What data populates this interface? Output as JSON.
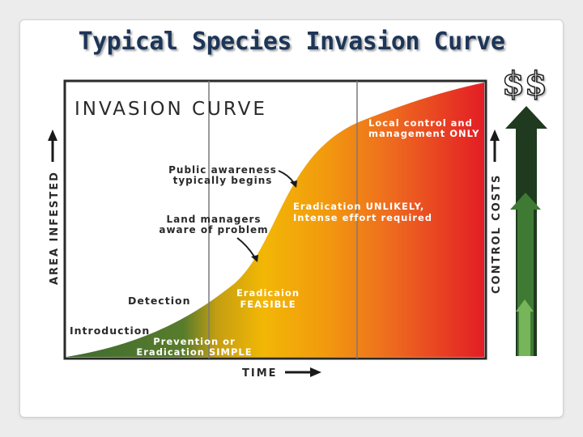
{
  "slide": {
    "title": "Typical Species Invasion Curve",
    "cost_symbol": "$$"
  },
  "diagram": {
    "heading": "INVASION CURVE",
    "y_axis_label": "AREA INFESTED",
    "x_axis_label": "TIME",
    "right_axis_label": "CONTROL COSTS",
    "labels": {
      "introduction": "Introduction",
      "detection": "Detection",
      "prevention_line1": "Prevention or",
      "prevention_line2": "Eradication SIMPLE",
      "eradication_line1": "Eradicaion",
      "eradication_line2": "FEASIBLE",
      "land_line1": "Land managers",
      "land_line2": "aware of problem",
      "public_line1": "Public awareness",
      "public_line2": "typically begins",
      "unlikely_line1": "Eradication UNLIKELY,",
      "unlikely_line2": "Intense effort required",
      "local_line1": "Local control and",
      "local_line2": "management ONLY"
    },
    "colors": {
      "curve_green": "#3e6b2f",
      "curve_yellow": "#f2b705",
      "curve_orange": "#ee6a1f",
      "curve_red": "#e31d25",
      "cost_arrow_dark": "#1f3a1e",
      "cost_arrow_mid": "#3f7a35",
      "cost_arrow_light": "#77b55a"
    }
  }
}
